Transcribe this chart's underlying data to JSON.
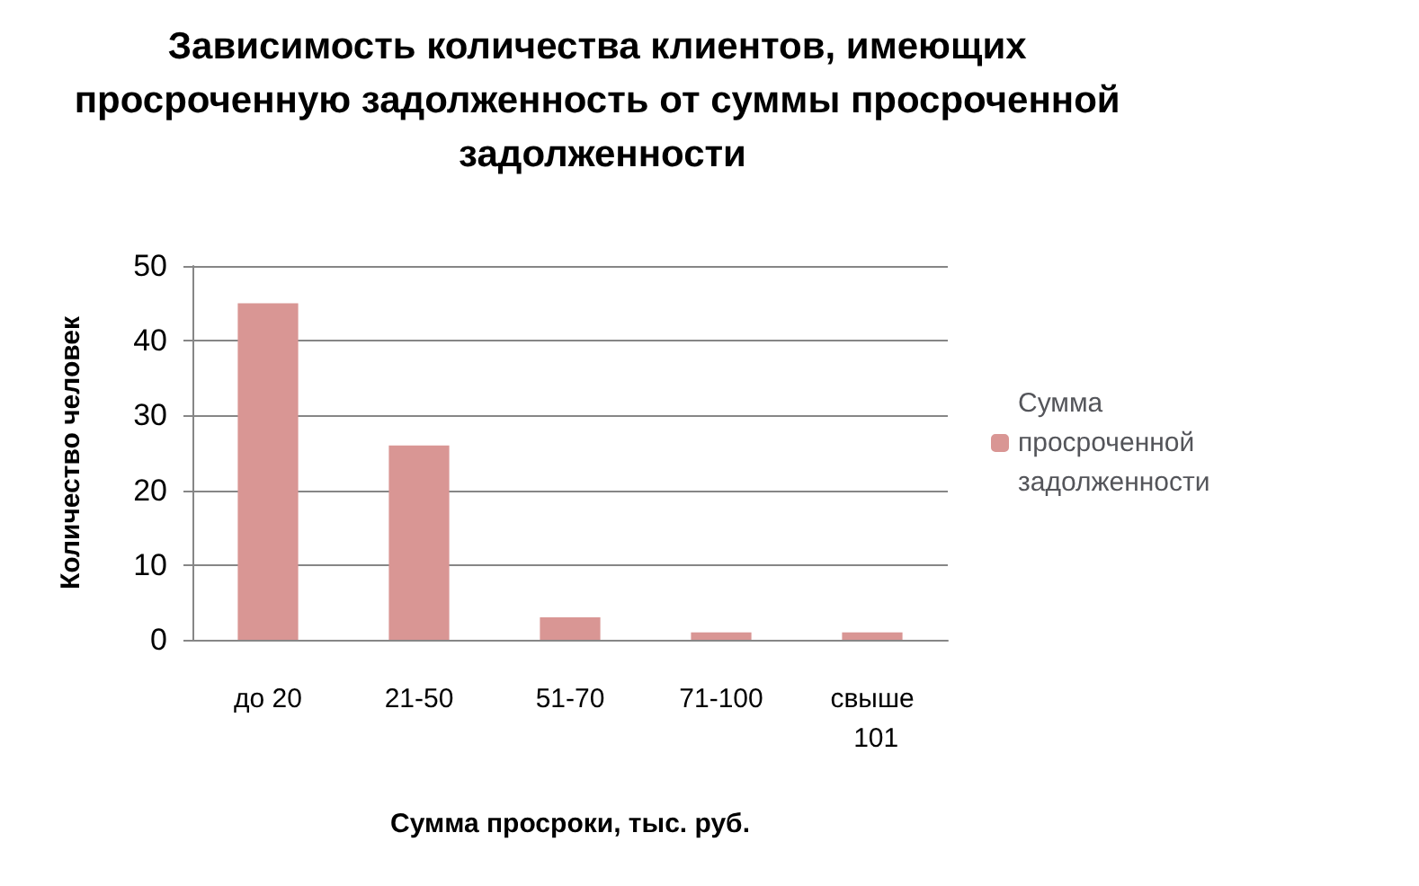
{
  "chart_data": {
    "type": "bar",
    "title": "Зависимость количества клиентов, имеющих просроченную задолженность от суммы просроченной задолженности",
    "xlabel": "Сумма просроки, тыс. руб.",
    "ylabel": "Количество человек",
    "categories": [
      "до 20",
      "21-50",
      "51-70",
      "71-100",
      "свыше 101"
    ],
    "series": [
      {
        "name": "Сумма просроченной задолженности",
        "color": "#d99694",
        "values": [
          45,
          26,
          3,
          1,
          1
        ]
      }
    ],
    "ylim": [
      0,
      50
    ],
    "yticks": [
      0,
      10,
      20,
      30,
      40,
      50
    ],
    "grid": "y",
    "legend": "right"
  }
}
